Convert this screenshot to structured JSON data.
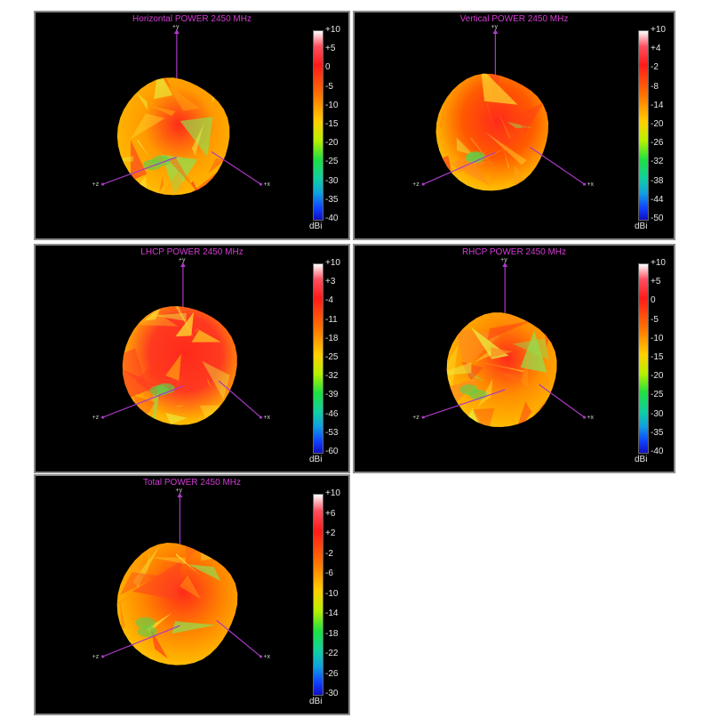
{
  "chart_data": [
    {
      "type": "3d-radiation-pattern",
      "title": "Horizontal POWER 2450  MHz",
      "colorbar": {
        "ticks": [
          "+10",
          "+5",
          "0",
          "-5",
          "-10",
          "-15",
          "-20",
          "-25",
          "-30",
          "-35",
          "-40"
        ],
        "unit": "dBi",
        "range": [
          -40,
          10
        ]
      },
      "axes": {
        "x": "+x",
        "y": "+y",
        "z": "+z"
      },
      "dominant_color": "#ff9a00"
    },
    {
      "type": "3d-radiation-pattern",
      "title": "Vertical POWER 2450  MHz",
      "colorbar": {
        "ticks": [
          "+10",
          "+4",
          "-2",
          "-8",
          "-14",
          "-20",
          "-26",
          "-32",
          "-38",
          "-44",
          "-50"
        ],
        "unit": "dBi",
        "range": [
          -50,
          10
        ]
      },
      "axes": {
        "x": "+x",
        "y": "+y",
        "z": "+z"
      },
      "dominant_color": "#ff5a00"
    },
    {
      "type": "3d-radiation-pattern",
      "title": "LHCP POWER 2450  MHz",
      "colorbar": {
        "ticks": [
          "+10",
          "+3",
          "-4",
          "-11",
          "-18",
          "-25",
          "-32",
          "-39",
          "-46",
          "-53",
          "-60"
        ],
        "unit": "dBi",
        "range": [
          -60,
          10
        ]
      },
      "axes": {
        "x": "+x",
        "y": "+y",
        "z": "+z"
      },
      "dominant_color": "#ff3a20"
    },
    {
      "type": "3d-radiation-pattern",
      "title": "RHCP POWER 2450  MHz",
      "colorbar": {
        "ticks": [
          "+10",
          "+5",
          "0",
          "-5",
          "-10",
          "-15",
          "-20",
          "-25",
          "-30",
          "-35",
          "-40"
        ],
        "unit": "dBi",
        "range": [
          -40,
          10
        ]
      },
      "axes": {
        "x": "+x",
        "y": "+y",
        "z": "+z"
      },
      "dominant_color": "#ff8c00"
    },
    {
      "type": "3d-radiation-pattern",
      "title": "Total POWER 2450  MHz",
      "colorbar": {
        "ticks": [
          "+10",
          "+6",
          "+2",
          "-2",
          "-6",
          "-10",
          "-14",
          "-18",
          "-22",
          "-26",
          "-30"
        ],
        "unit": "dBi",
        "range": [
          -30,
          10
        ]
      },
      "axes": {
        "x": "+x",
        "y": "+y",
        "z": "+z"
      },
      "dominant_color": "#ff8000"
    }
  ]
}
